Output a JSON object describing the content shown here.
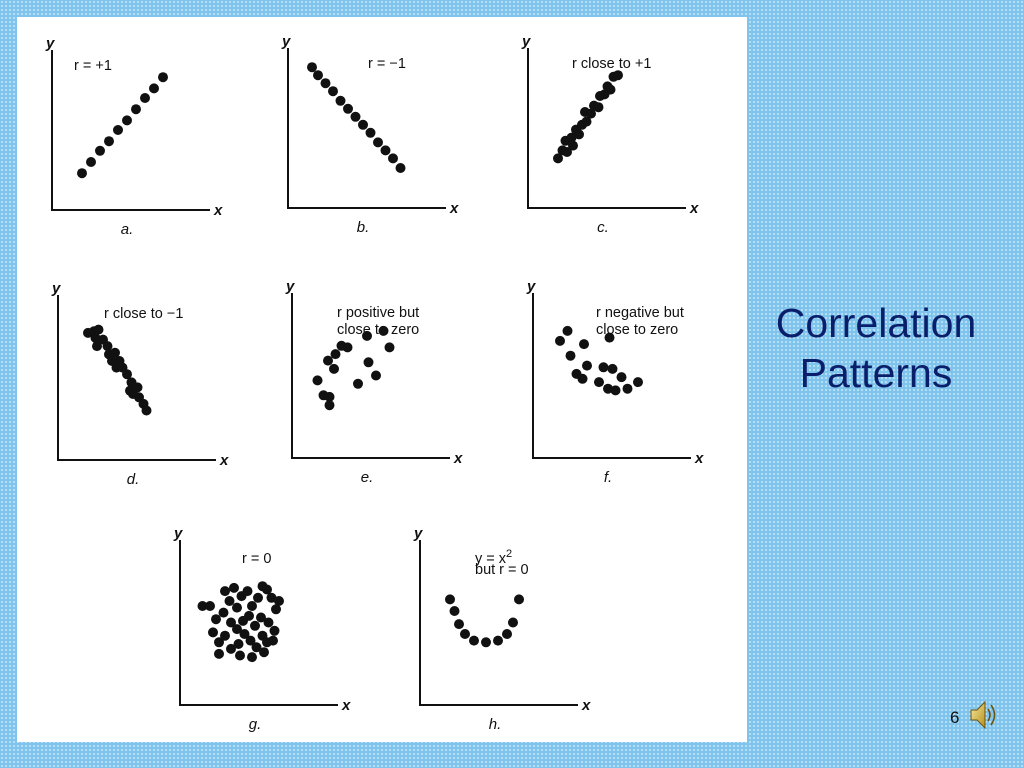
{
  "slide": {
    "title_line1": "Correlation",
    "title_line2": "Patterns",
    "page_number": "6"
  },
  "icons": {
    "audio": "speaker-icon"
  },
  "colors": {
    "background": "#7ec4ec",
    "title": "#0a1f6b",
    "points": "#111111"
  },
  "chart_data": [
    {
      "type": "scatter",
      "caption": "a.",
      "annotation": "r = +1",
      "xlabel": "x",
      "ylabel": "y",
      "xlim": [
        0,
        10
      ],
      "ylim": [
        0,
        10
      ],
      "grid": false,
      "points": [
        [
          2.0,
          2.3
        ],
        [
          2.6,
          3.0
        ],
        [
          3.2,
          3.7
        ],
        [
          3.8,
          4.3
        ],
        [
          4.4,
          5.0
        ],
        [
          5.0,
          5.6
        ],
        [
          5.6,
          6.3
        ],
        [
          6.2,
          7.0
        ],
        [
          6.8,
          7.6
        ],
        [
          7.4,
          8.3
        ]
      ]
    },
    {
      "type": "scatter",
      "caption": "b.",
      "annotation": "r = −1",
      "xlabel": "x",
      "ylabel": "y",
      "xlim": [
        0,
        10
      ],
      "ylim": [
        0,
        10
      ],
      "grid": false,
      "points": [
        [
          1.6,
          8.8
        ],
        [
          2.0,
          8.3
        ],
        [
          2.5,
          7.8
        ],
        [
          3.0,
          7.3
        ],
        [
          3.5,
          6.7
        ],
        [
          4.0,
          6.2
        ],
        [
          4.5,
          5.7
        ],
        [
          5.0,
          5.2
        ],
        [
          5.5,
          4.7
        ],
        [
          6.0,
          4.1
        ],
        [
          6.5,
          3.6
        ],
        [
          7.0,
          3.1
        ],
        [
          7.5,
          2.5
        ]
      ]
    },
    {
      "type": "scatter",
      "caption": "c.",
      "annotation": "r close to +1",
      "xlabel": "x",
      "ylabel": "y",
      "xlim": [
        0,
        10
      ],
      "ylim": [
        0,
        10
      ],
      "grid": false,
      "points": [
        [
          2.0,
          3.1
        ],
        [
          2.3,
          3.6
        ],
        [
          2.6,
          3.5
        ],
        [
          2.5,
          4.2
        ],
        [
          2.9,
          4.4
        ],
        [
          3.0,
          3.9
        ],
        [
          3.2,
          4.9
        ],
        [
          3.4,
          4.6
        ],
        [
          3.6,
          5.2
        ],
        [
          3.9,
          5.4
        ],
        [
          3.8,
          6.0
        ],
        [
          4.2,
          5.9
        ],
        [
          4.4,
          6.4
        ],
        [
          4.7,
          6.3
        ],
        [
          4.8,
          7.0
        ],
        [
          5.1,
          7.1
        ],
        [
          5.3,
          7.6
        ],
        [
          5.5,
          7.4
        ],
        [
          5.7,
          8.2
        ],
        [
          6.0,
          8.3
        ]
      ]
    },
    {
      "type": "scatter",
      "caption": "d.",
      "annotation": "r close to −1",
      "xlabel": "x",
      "ylabel": "y",
      "xlim": [
        0,
        10
      ],
      "ylim": [
        0,
        10
      ],
      "grid": false,
      "points": [
        [
          2.0,
          7.7
        ],
        [
          2.4,
          7.8
        ],
        [
          2.7,
          7.9
        ],
        [
          2.5,
          7.4
        ],
        [
          3.0,
          7.3
        ],
        [
          2.6,
          6.9
        ],
        [
          3.3,
          6.9
        ],
        [
          3.4,
          6.4
        ],
        [
          3.8,
          6.5
        ],
        [
          3.6,
          6.0
        ],
        [
          4.1,
          6.0
        ],
        [
          4.3,
          5.6
        ],
        [
          3.9,
          5.6
        ],
        [
          4.6,
          5.2
        ],
        [
          4.9,
          4.7
        ],
        [
          4.8,
          4.2
        ],
        [
          5.3,
          4.4
        ],
        [
          5.4,
          3.8
        ],
        [
          5.7,
          3.4
        ],
        [
          5.0,
          4.0
        ],
        [
          5.9,
          3.0
        ]
      ]
    },
    {
      "type": "scatter",
      "caption": "e.",
      "annotation": "r positive but close to zero",
      "xlabel": "x",
      "ylabel": "y",
      "xlim": [
        0,
        10
      ],
      "ylim": [
        0,
        10
      ],
      "grid": false,
      "points": [
        [
          1.7,
          4.7
        ],
        [
          2.1,
          3.8
        ],
        [
          2.5,
          3.7
        ],
        [
          2.5,
          3.2
        ],
        [
          2.4,
          5.9
        ],
        [
          2.9,
          6.3
        ],
        [
          3.3,
          6.8
        ],
        [
          3.7,
          6.7
        ],
        [
          2.8,
          5.4
        ],
        [
          4.4,
          4.5
        ],
        [
          5.0,
          7.4
        ],
        [
          5.1,
          5.8
        ],
        [
          5.6,
          5.0
        ],
        [
          6.1,
          7.7
        ],
        [
          6.5,
          6.7
        ]
      ]
    },
    {
      "type": "scatter",
      "caption": "f.",
      "annotation": "r negative but close to zero",
      "xlabel": "x",
      "ylabel": "y",
      "xlim": [
        0,
        10
      ],
      "ylim": [
        0,
        10
      ],
      "grid": false,
      "points": [
        [
          1.8,
          7.1
        ],
        [
          2.3,
          7.7
        ],
        [
          3.4,
          6.9
        ],
        [
          2.5,
          6.2
        ],
        [
          3.6,
          5.6
        ],
        [
          2.9,
          5.1
        ],
        [
          3.3,
          4.8
        ],
        [
          4.4,
          4.6
        ],
        [
          4.7,
          5.5
        ],
        [
          5.0,
          4.2
        ],
        [
          5.1,
          7.3
        ],
        [
          5.3,
          5.4
        ],
        [
          5.9,
          4.9
        ],
        [
          6.3,
          4.2
        ],
        [
          5.5,
          4.1
        ],
        [
          7.0,
          4.6
        ]
      ]
    },
    {
      "type": "scatter",
      "caption": "g.",
      "annotation": "r = 0",
      "xlabel": "x",
      "ylabel": "y",
      "xlim": [
        0,
        10
      ],
      "ylim": [
        0,
        10
      ],
      "grid": false,
      "points": [
        [
          1.5,
          6.0
        ],
        [
          2.0,
          6.0
        ],
        [
          2.4,
          5.2
        ],
        [
          2.9,
          5.6
        ],
        [
          3.3,
          6.3
        ],
        [
          3.0,
          6.9
        ],
        [
          3.6,
          7.1
        ],
        [
          3.8,
          5.9
        ],
        [
          4.1,
          6.6
        ],
        [
          4.5,
          6.9
        ],
        [
          4.8,
          6.0
        ],
        [
          5.2,
          6.5
        ],
        [
          5.5,
          7.2
        ],
        [
          5.8,
          7.0
        ],
        [
          6.1,
          6.5
        ],
        [
          6.4,
          5.8
        ],
        [
          6.6,
          6.3
        ],
        [
          3.4,
          5.0
        ],
        [
          3.8,
          4.6
        ],
        [
          4.2,
          5.1
        ],
        [
          4.6,
          5.4
        ],
        [
          5.0,
          4.8
        ],
        [
          5.4,
          5.3
        ],
        [
          5.9,
          5.0
        ],
        [
          6.3,
          4.5
        ],
        [
          2.2,
          4.4
        ],
        [
          2.6,
          3.8
        ],
        [
          3.0,
          4.2
        ],
        [
          3.4,
          3.4
        ],
        [
          3.9,
          3.7
        ],
        [
          4.3,
          4.3
        ],
        [
          4.7,
          3.9
        ],
        [
          5.1,
          3.5
        ],
        [
          5.5,
          4.2
        ],
        [
          5.8,
          3.8
        ],
        [
          6.2,
          3.9
        ],
        [
          2.6,
          3.1
        ],
        [
          4.0,
          3.0
        ],
        [
          4.8,
          2.9
        ],
        [
          5.6,
          3.2
        ]
      ]
    },
    {
      "type": "scatter",
      "caption": "h.",
      "annotation": "y = x² but r = 0",
      "xlabel": "x",
      "ylabel": "y",
      "xlim": [
        0,
        10
      ],
      "ylim": [
        0,
        10
      ],
      "grid": false,
      "points": [
        [
          2.0,
          6.4
        ],
        [
          2.3,
          5.7
        ],
        [
          2.6,
          4.9
        ],
        [
          3.0,
          4.3
        ],
        [
          3.6,
          3.9
        ],
        [
          4.4,
          3.8
        ],
        [
          5.2,
          3.9
        ],
        [
          5.8,
          4.3
        ],
        [
          6.2,
          5.0
        ],
        [
          6.6,
          6.4
        ]
      ]
    }
  ]
}
